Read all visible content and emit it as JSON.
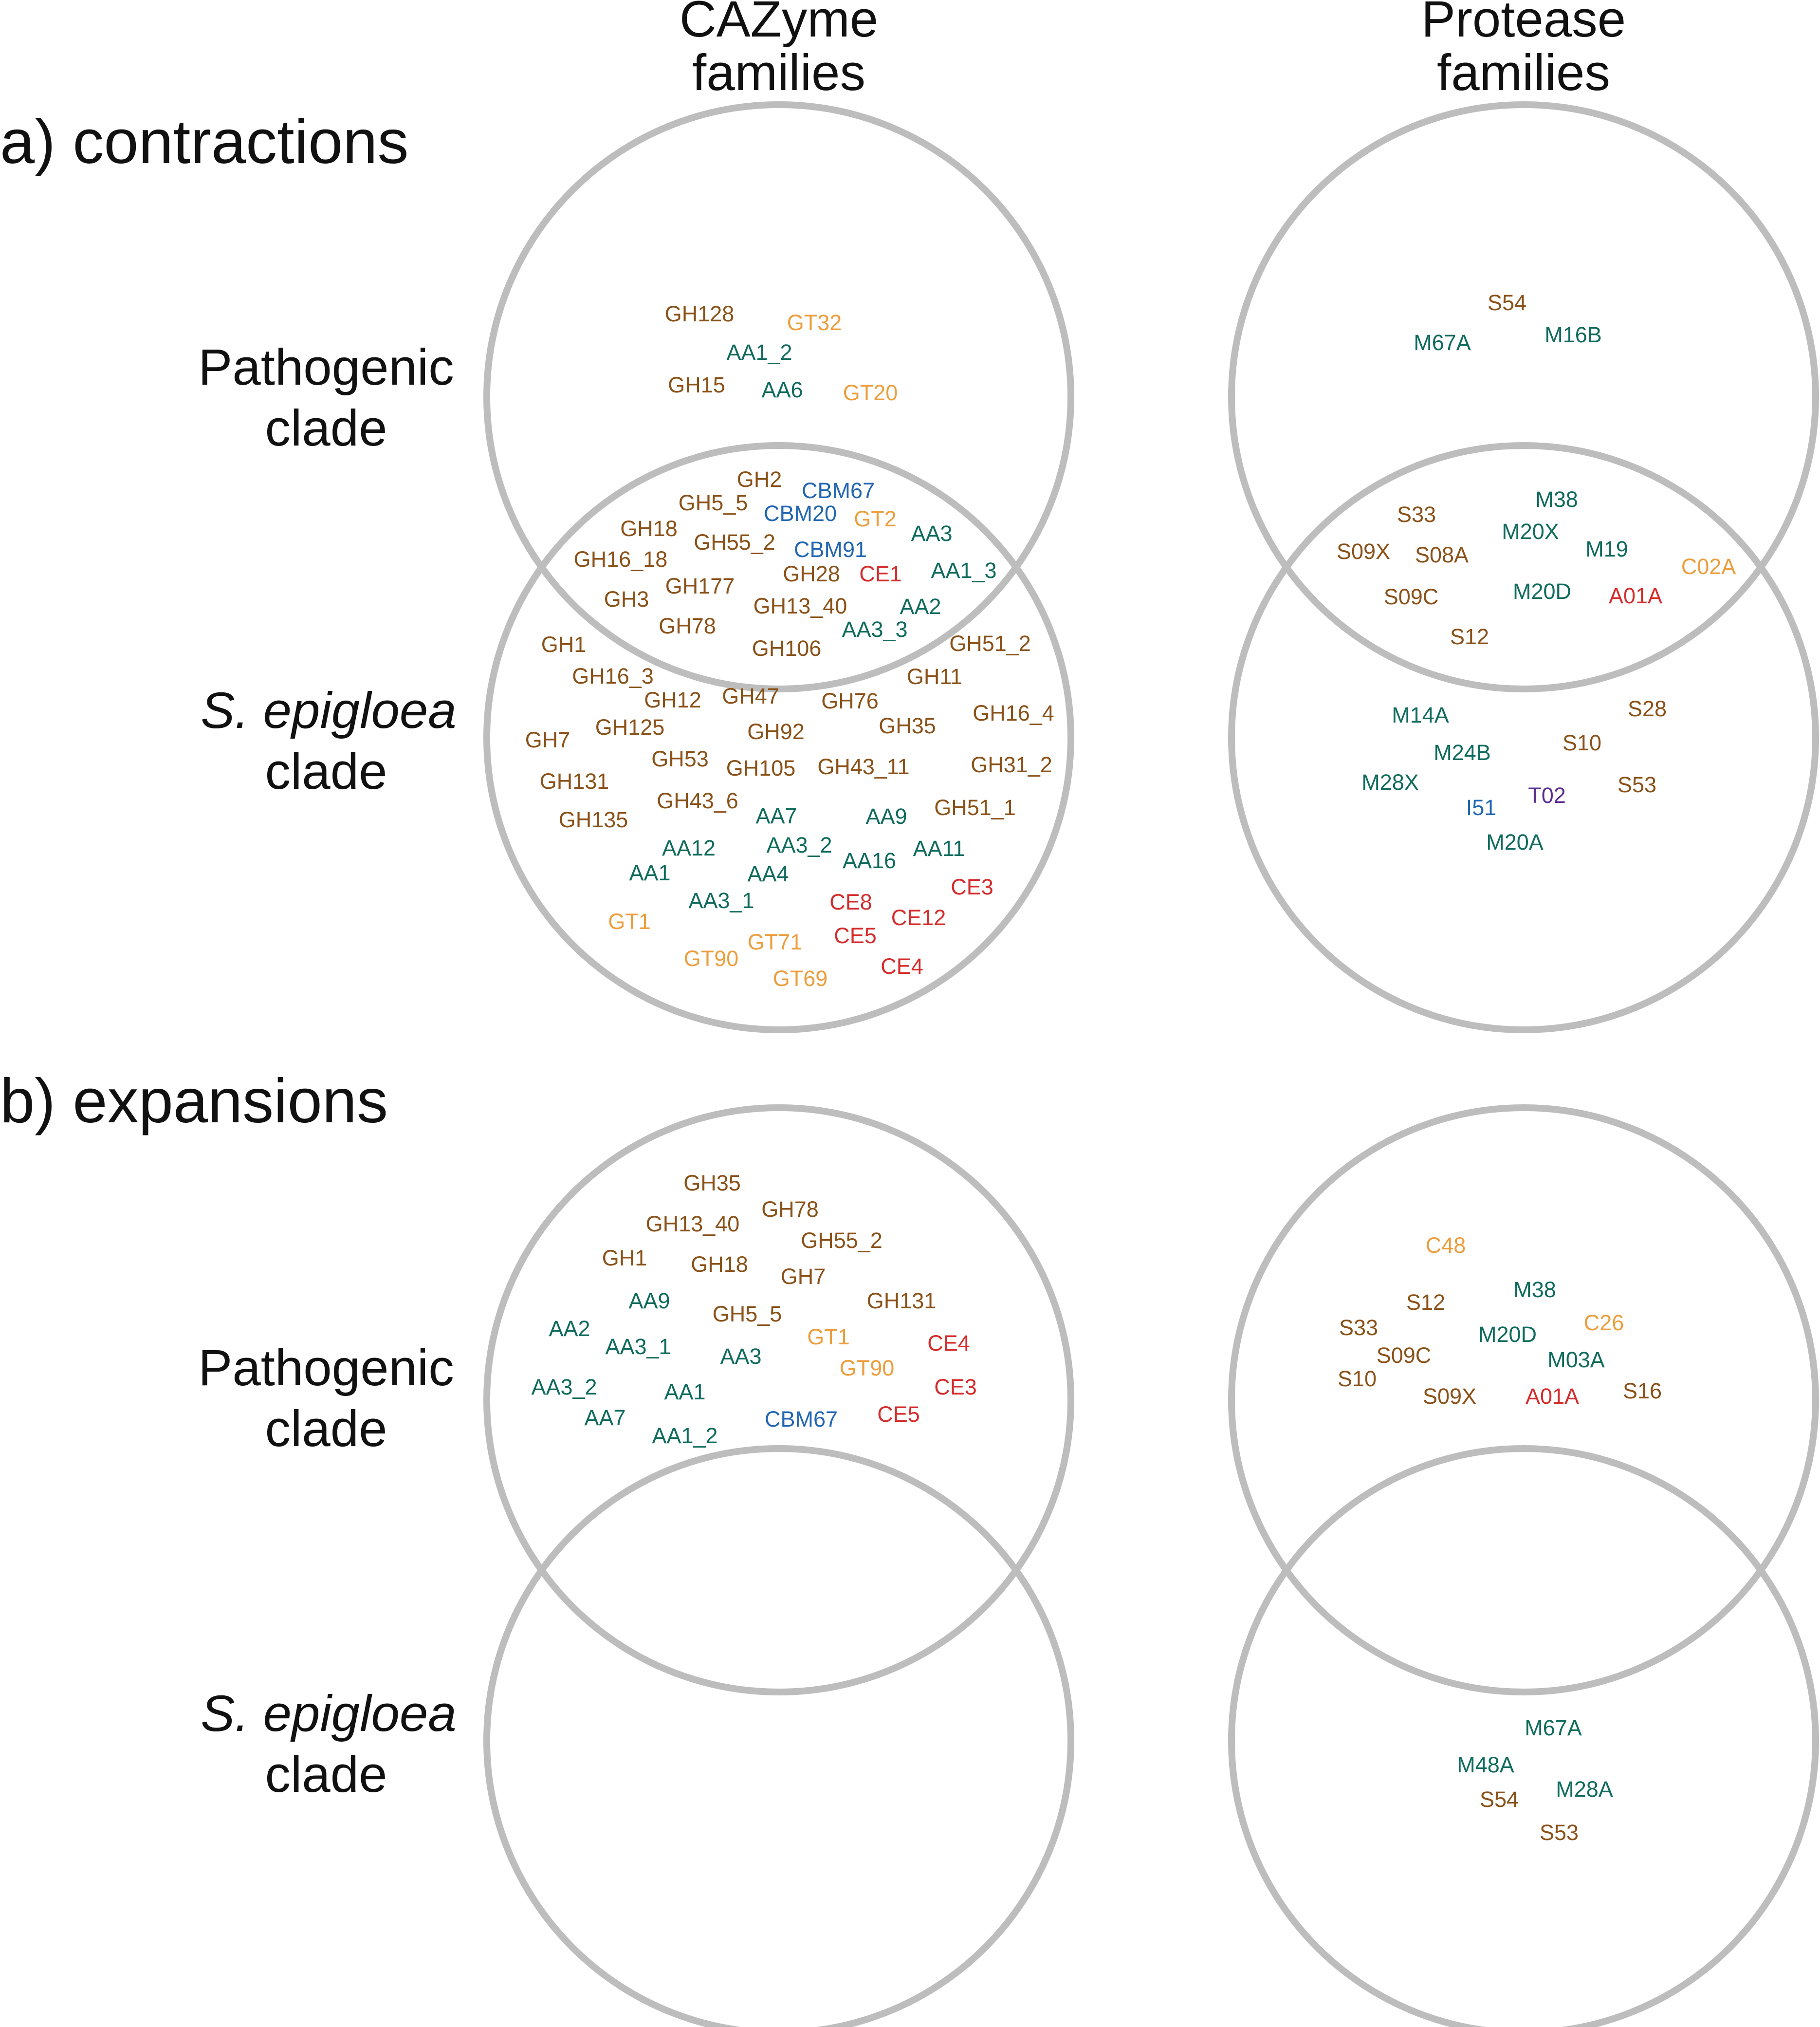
{
  "colors": {
    "GH": "#8a5118",
    "GT": "#ec9e3d",
    "AA": "#0f6b5d",
    "CE": "#d52b2b",
    "CBM": "#2266b3",
    "S": "#8a5118",
    "M": "#0f6b5d",
    "A": "#d52b2b",
    "C": "#ec9e3d",
    "I": "#2266b3",
    "T": "#5b2d8f"
  },
  "headers": {
    "cazyme": [
      "CAZyme",
      "families"
    ],
    "protease": [
      "Protease",
      "families"
    ]
  },
  "sections": {
    "a": "a) contractions",
    "b": "b) expansions"
  },
  "row_labels": {
    "pathogenic": [
      "Pathogenic",
      "clade"
    ],
    "epigloea": [
      "S. epigloea",
      "clade"
    ]
  },
  "families": {
    "a_cazyme": [
      "GH128",
      "GT32",
      "AA1_2",
      "GH15",
      "AA6",
      "GT20",
      "GH2",
      "GH5_5",
      "CBM67",
      "CBM20",
      "GT2",
      "GH18",
      "AA3",
      "GH55_2",
      "CBM91",
      "GH16_18",
      "AA1_3",
      "GH28",
      "CE1",
      "GH3",
      "GH177",
      "GH13_40",
      "AA2",
      "GH78",
      "AA3_3",
      "GH106",
      "GH1",
      "GH51_2",
      "GH16_3",
      "GH11",
      "GH12",
      "GH47",
      "GH76",
      "GH16_4",
      "GH7",
      "GH125",
      "GH92",
      "GH35",
      "GH53",
      "GH105",
      "GH43_11",
      "GH31_2",
      "GH131",
      "GH43_6",
      "GH135",
      "AA7",
      "AA9",
      "GH51_1",
      "AA12",
      "AA3_2",
      "AA16",
      "AA11",
      "AA1",
      "AA4",
      "AA3_1",
      "CE8",
      "CE3",
      "GT1",
      "CE12",
      "CE5",
      "GT71",
      "GT90",
      "GT69",
      "CE4"
    ],
    "a_protease": [
      "S54",
      "M67A",
      "M16B",
      "S33",
      "M38",
      "M20X",
      "S09X",
      "S08A",
      "M19",
      "C02A",
      "S09C",
      "M20D",
      "A01A",
      "S12",
      "M14A",
      "S28",
      "M24B",
      "S10",
      "M28X",
      "S53",
      "I51",
      "T02",
      "M20A"
    ],
    "b_cazyme": [
      "GH35",
      "GH78",
      "GH13_40",
      "GH55_2",
      "GH1",
      "GH18",
      "GH7",
      "AA9",
      "GH131",
      "GH5_5",
      "AA2",
      "GT1",
      "CE4",
      "AA3_1",
      "AA3",
      "GT90",
      "AA3_2",
      "AA1",
      "CE3",
      "AA7",
      "CE5",
      "AA1_2",
      "CBM67"
    ],
    "b_protease": [
      "C48",
      "S12",
      "M38",
      "S33",
      "M20D",
      "C26",
      "S09C",
      "M03A",
      "S10",
      "S09X",
      "A01A",
      "S16",
      "M67A",
      "M48A",
      "M28A",
      "S54",
      "S53"
    ]
  }
}
